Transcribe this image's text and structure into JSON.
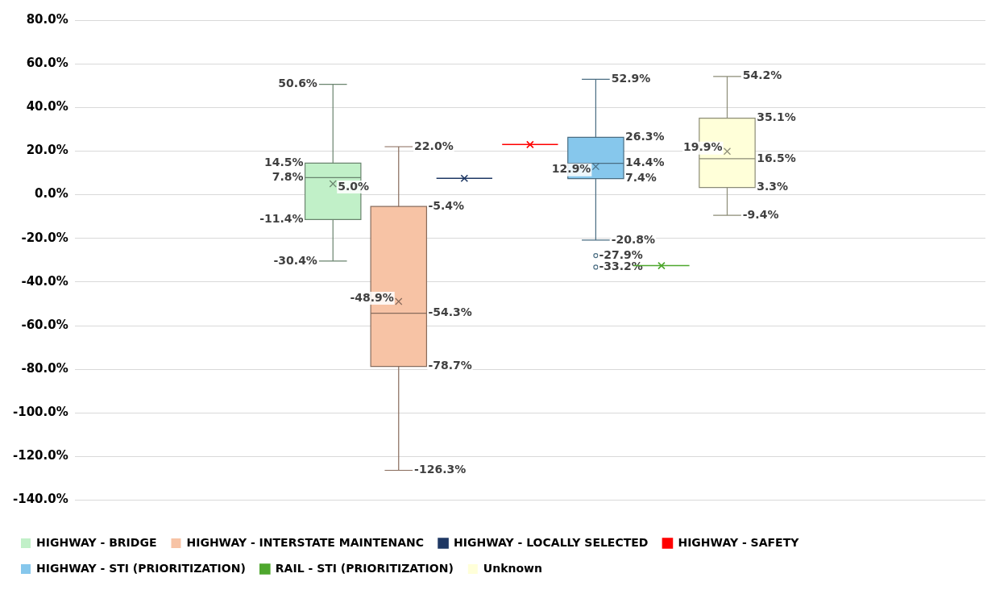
{
  "chart_data": {
    "type": "box",
    "categories": [
      null
    ],
    "ylim": [
      -140,
      80
    ],
    "yticks": [
      {
        "value": -140,
        "label": "-140.0%"
      },
      {
        "value": -120,
        "label": "-120.0%"
      },
      {
        "value": -100,
        "label": "-100.0%"
      },
      {
        "value": -80,
        "label": "-80.0%"
      },
      {
        "value": -60,
        "label": "-60.0%"
      },
      {
        "value": -40,
        "label": "-40.0%"
      },
      {
        "value": -20,
        "label": "-20.0%"
      },
      {
        "value": 0,
        "label": "0.0%"
      },
      {
        "value": 20,
        "label": "20.0%"
      },
      {
        "value": 40,
        "label": "40.0%"
      },
      {
        "value": 60,
        "label": "60.0%"
      },
      {
        "value": 80,
        "label": "80.0%"
      }
    ],
    "grid": "y",
    "legend": "bottom",
    "marker": "cross",
    "series": [
      {
        "name": "HIGHWAY - BRIDGE",
        "color": "#c1f0c8",
        "boxes": [
          {
            "low": -30.4,
            "q1": -11.4,
            "median": 7.8,
            "q3": 14.5,
            "high": 50.6,
            "mean": 5.0
          }
        ]
      },
      {
        "name": "HIGHWAY - INTERSTATE MAINTENANC",
        "color": "#f7c3a5",
        "boxes": [
          {
            "low": -126.3,
            "q1": -78.7,
            "median": -54.3,
            "q3": -5.4,
            "high": 22.0,
            "mean": -48.9
          }
        ]
      },
      {
        "name": "HIGHWAY - LOCALLY SELECTED",
        "color": "#1f3864",
        "boxes": [
          {
            "low": 7.5,
            "q1": 7.5,
            "median": 7.5,
            "q3": 7.5,
            "high": 7.5,
            "mean": 7.5
          }
        ]
      },
      {
        "name": "HIGHWAY - SAFETY",
        "color": "#ff0000",
        "boxes": [
          {
            "low": 23.0,
            "q1": 23.0,
            "median": 23.0,
            "q3": 23.0,
            "high": 23.0,
            "mean": 23.0
          }
        ]
      },
      {
        "name": "HIGHWAY - STI (PRIORITIZATION)",
        "color": "#86c7ec",
        "boxes": [
          {
            "low": -20.8,
            "q1": 7.4,
            "median": 14.4,
            "q3": 26.3,
            "high": 52.9,
            "mean": 12.9,
            "outliers": [
              -27.9,
              -33.2
            ]
          }
        ]
      },
      {
        "name": "RAIL - STI (PRIORITIZATION)",
        "color": "#4ea72e",
        "boxes": [
          {
            "low": -32.5,
            "q1": -32.5,
            "median": -32.5,
            "q3": -32.5,
            "high": -32.5,
            "mean": -32.5
          }
        ]
      },
      {
        "name": "Unknown",
        "color": "#ffffd9",
        "boxes": [
          {
            "low": -9.4,
            "q1": 3.3,
            "median": 16.5,
            "q3": 35.1,
            "high": 54.2,
            "mean": 19.9
          }
        ]
      }
    ],
    "annotations": [
      "50.6%",
      "14.5%",
      "7.8%",
      "5.0%",
      "-11.4%",
      "-30.4%",
      "22.0%",
      "-5.4%",
      "-54.3%",
      "-48.9%",
      "-78.7%",
      "-126.3%",
      "52.9%",
      "26.3%",
      "14.4%",
      "12.9%",
      "7.4%",
      "-20.8%",
      "-27.9%",
      "-33.2%",
      "54.2%",
      "35.1%",
      "16.5%",
      "19.9%",
      "3.3%",
      "-9.4%"
    ]
  }
}
